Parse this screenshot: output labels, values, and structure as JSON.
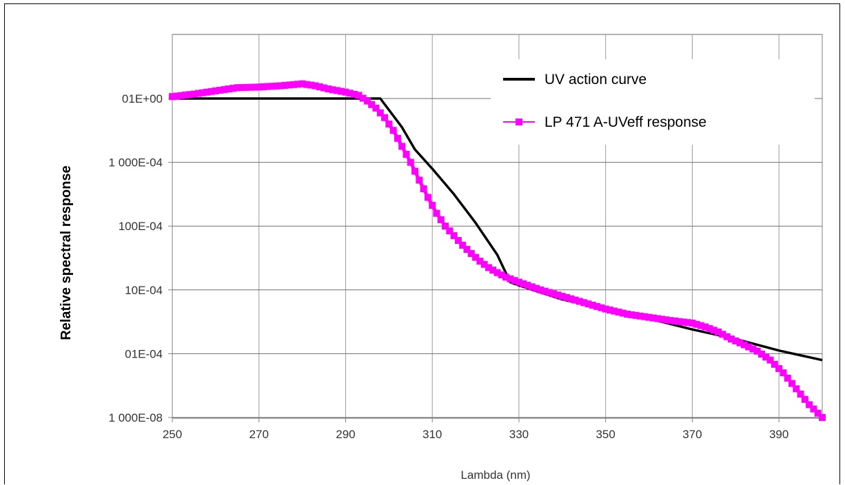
{
  "chart_data": {
    "type": "line",
    "xlabel": "Lambda (nm)",
    "ylabel": "Relative spectral response",
    "xlim": [
      250,
      400
    ],
    "x_ticks": [
      250,
      270,
      290,
      310,
      330,
      350,
      370,
      390
    ],
    "y_scale": "log",
    "ylim_exponent": [
      -8,
      1.5
    ],
    "y_ticks": [
      {
        "exp": 0,
        "label": "01E+00"
      },
      {
        "exp": -1,
        "label": "1 000E-04"
      },
      {
        "exp": -2,
        "label": "100E-04"
      },
      {
        "exp": -3,
        "label": "10E-04"
      },
      {
        "exp": -4,
        "label": "01E-04"
      },
      {
        "exp": -5,
        "label": "1 000E-08"
      }
    ],
    "grid": true,
    "legend_position": "top-right",
    "series": [
      {
        "name": "UV action curve",
        "color": "#000000",
        "marker": "none",
        "x": [
          250,
          270,
          290,
          298,
          303,
          306,
          310,
          315,
          320,
          325,
          328,
          330,
          340,
          350,
          360,
          370,
          380,
          390,
          400
        ],
        "exp": [
          0.0,
          0.0,
          0.0,
          0.0,
          -0.45,
          -0.8,
          -1.1,
          -1.5,
          -1.95,
          -2.45,
          -2.88,
          -2.93,
          -3.15,
          -3.3,
          -3.45,
          -3.62,
          -3.77,
          -3.95,
          -4.1
        ]
      },
      {
        "name": "LP 471 A-UVeff response",
        "color": "#ff00ff",
        "marker": "square",
        "x": [
          250,
          255,
          260,
          265,
          270,
          275,
          280,
          283,
          286,
          290,
          293,
          295,
          297,
          299,
          301,
          303,
          305,
          307,
          309,
          311,
          313,
          315,
          317,
          319,
          321,
          323,
          325,
          327,
          330,
          335,
          340,
          345,
          350,
          355,
          360,
          365,
          370,
          373,
          376,
          379,
          382,
          385,
          388,
          391,
          394,
          397,
          400
        ],
        "exp": [
          0.03,
          0.07,
          0.12,
          0.17,
          0.18,
          0.2,
          0.23,
          0.2,
          0.15,
          0.1,
          0.05,
          -0.04,
          -0.15,
          -0.3,
          -0.5,
          -0.75,
          -1.0,
          -1.28,
          -1.55,
          -1.8,
          -2.0,
          -2.15,
          -2.3,
          -2.43,
          -2.55,
          -2.65,
          -2.73,
          -2.8,
          -2.88,
          -3.0,
          -3.1,
          -3.2,
          -3.3,
          -3.38,
          -3.43,
          -3.48,
          -3.52,
          -3.58,
          -3.66,
          -3.77,
          -3.86,
          -3.96,
          -4.1,
          -4.3,
          -4.55,
          -4.8,
          -5.0
        ]
      }
    ]
  }
}
